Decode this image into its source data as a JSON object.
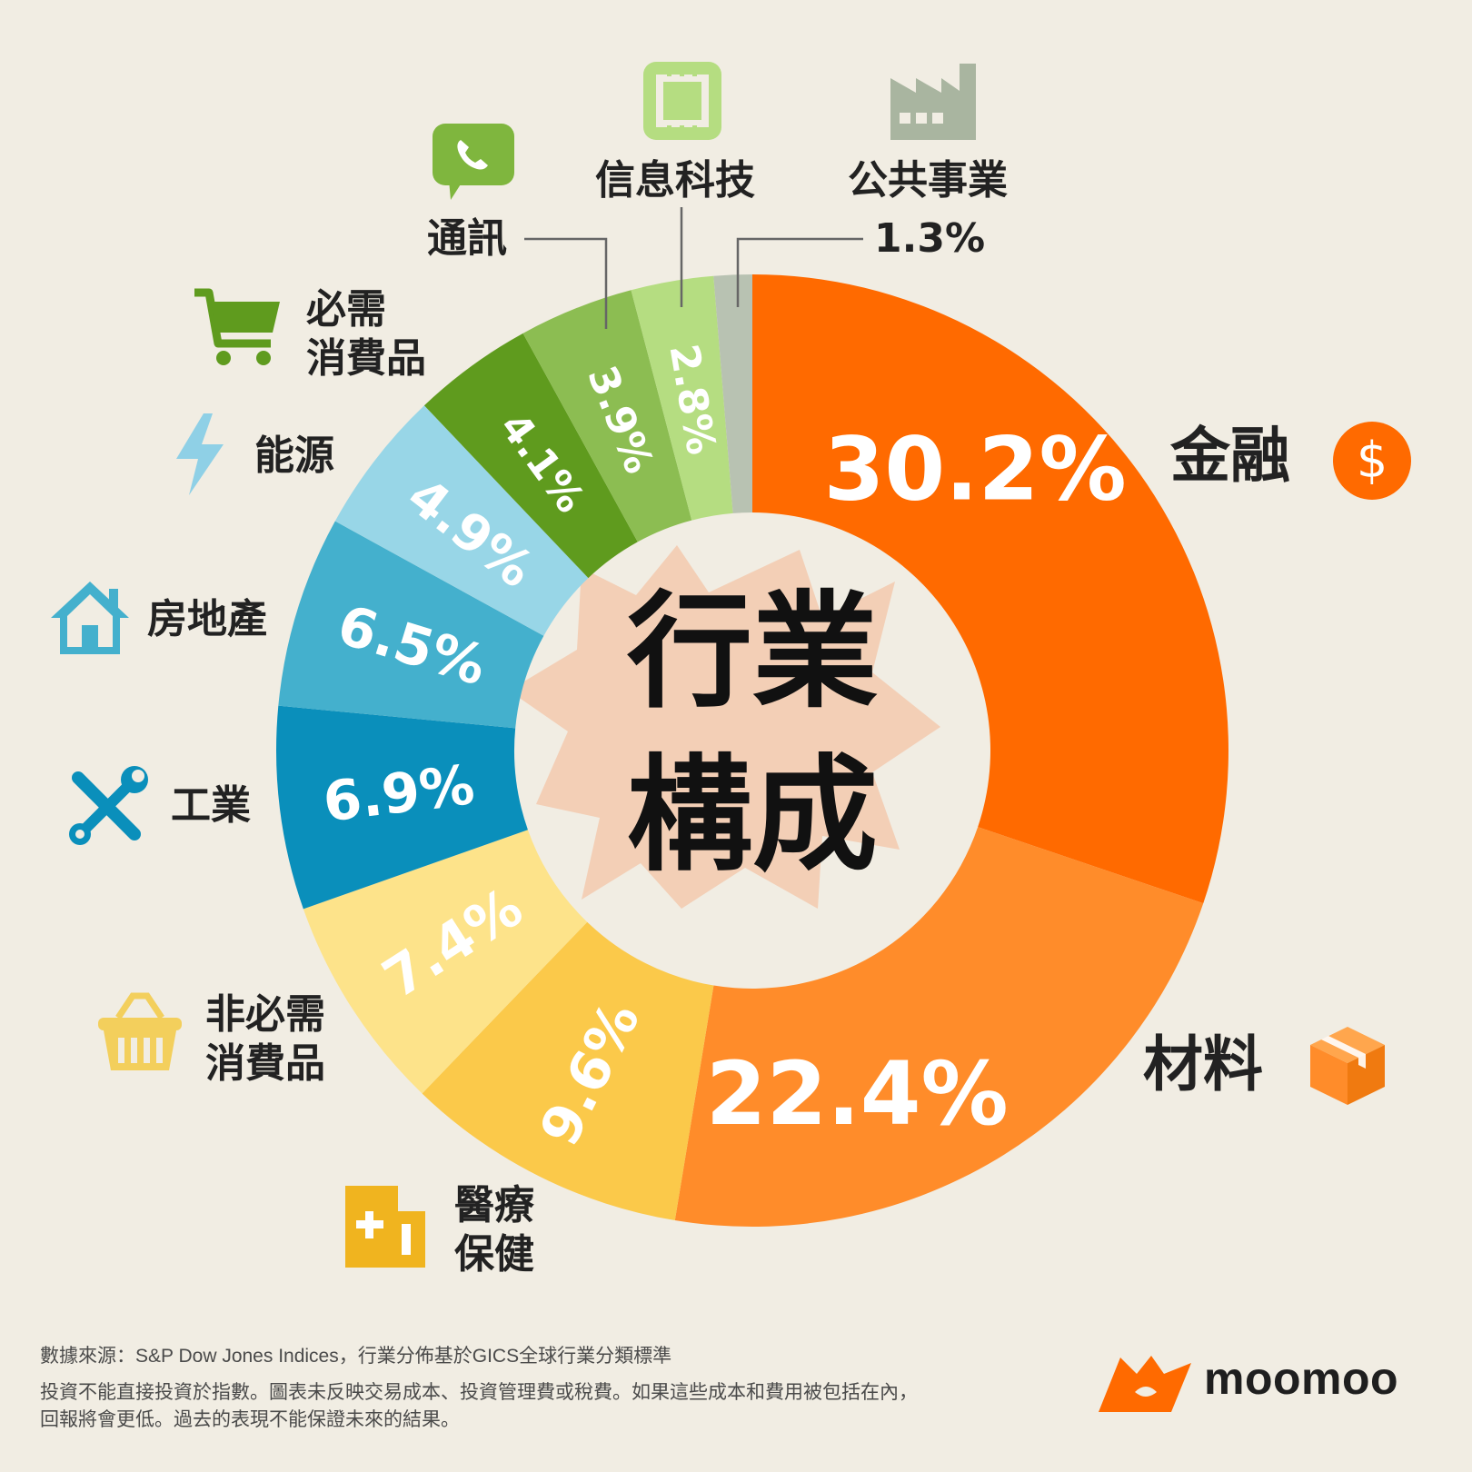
{
  "chart_data": {
    "type": "donut",
    "center_title": [
      "行業",
      "構成"
    ],
    "value_suffix": "%",
    "sectors": [
      {
        "name": "金融",
        "value": 30.2,
        "color": "#ff6a00"
      },
      {
        "name": "材料",
        "value": 22.4,
        "color": "#ff8c2a"
      },
      {
        "name": "醫療\n保健",
        "value": 9.6,
        "color": "#fbc94a"
      },
      {
        "name": "非必需\n消費品",
        "value": 7.4,
        "color": "#fde38a"
      },
      {
        "name": "工業",
        "value": 6.9,
        "color": "#0a8fbb"
      },
      {
        "name": "房地產",
        "value": 6.5,
        "color": "#44b0cd"
      },
      {
        "name": "能源",
        "value": 4.9,
        "color": "#98d6e7"
      },
      {
        "name": "必需\n消費品",
        "value": 4.1,
        "color": "#5f9b1e"
      },
      {
        "name": "通訊",
        "value": 3.9,
        "color": "#8cbd52"
      },
      {
        "name": "信息科技",
        "value": 2.8,
        "color": "#b5dd81"
      },
      {
        "name": "公共事業",
        "value": 1.3,
        "color": "#b8c2b2"
      }
    ],
    "slice_label_texts": [
      "30.2%",
      "22.4%",
      "9.6%",
      "7.4%",
      "6.9%",
      "6.5%",
      "4.9%",
      "4.1%",
      "3.9%",
      "2.8%",
      "1.3%"
    ]
  },
  "footer": {
    "source": "數據來源：S&P Dow Jones Indices，行業分佈基於GICS全球行業分類標準",
    "disclaimer_1": "投資不能直接投資於指數。圖表未反映交易成本、投資管理費或稅費。如果這些成本和費用被包括在內，",
    "disclaimer_2": "回報將會更低。過去的表現不能保證未來的結果。"
  },
  "brand": {
    "name": "moomoo",
    "color": "#ff6a00"
  },
  "icons": {
    "finance": "dollar-icon",
    "materials": "box-icon",
    "health": "medical-icon",
    "discretionary": "basket-icon",
    "industrial": "wrench-icon",
    "realestate": "house-icon",
    "energy": "lightning-icon",
    "staples": "cart-icon",
    "telecom": "phone-chat-icon",
    "it": "chip-icon",
    "utilities": "factory-icon"
  }
}
